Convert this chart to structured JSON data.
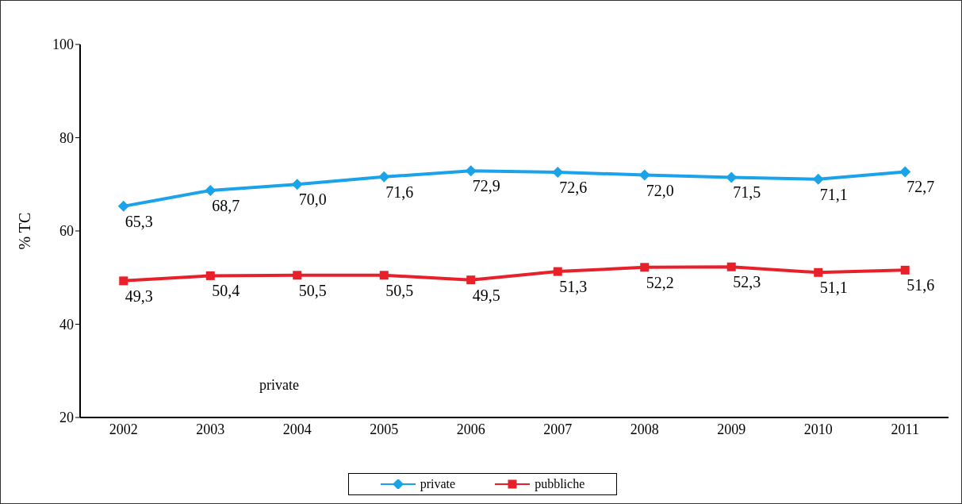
{
  "chart_data": {
    "type": "line",
    "ylabel": "% TC",
    "categories": [
      "2002",
      "2003",
      "2004",
      "2005",
      "2006",
      "2007",
      "2008",
      "2009",
      "2010",
      "2011"
    ],
    "series": [
      {
        "name": "private",
        "color": "#1aa3e8",
        "marker": "diamond",
        "values": [
          65.3,
          68.7,
          70.0,
          71.6,
          72.9,
          72.6,
          72.0,
          71.5,
          71.1,
          72.7
        ],
        "value_labels": [
          "65,3",
          "68,7",
          "70,0",
          "71,6",
          "72,9",
          "72,6",
          "72,0",
          "71,5",
          "71,1",
          "72,7"
        ]
      },
      {
        "name": "pubbliche",
        "color": "#e8202a",
        "marker": "square",
        "values": [
          49.3,
          50.4,
          50.5,
          50.5,
          49.5,
          51.3,
          52.2,
          52.3,
          51.1,
          51.6
        ],
        "value_labels": [
          "49,3",
          "50,4",
          "50,5",
          "50,5",
          "49,5",
          "51,3",
          "52,2",
          "52,3",
          "51,1",
          "51,6"
        ]
      }
    ],
    "ylim": [
      20,
      100
    ],
    "yticks": [
      20,
      40,
      60,
      80,
      100
    ],
    "legend": "bottom",
    "annotations": [
      "private"
    ]
  }
}
